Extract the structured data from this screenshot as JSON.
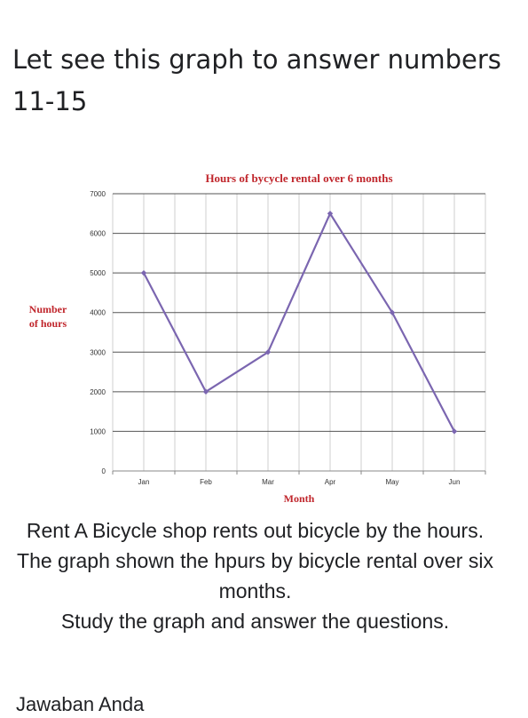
{
  "post": {
    "title": "Let see this graph to answer numbers 11-15",
    "description_lines": [
      "Rent A Bicycle shop rents out bicycle by the hours.",
      "The graph shown the hpurs by bicycle rental over six months.",
      "Study the graph and answer the questions."
    ],
    "cutoff_text": "Jawaban Anda"
  },
  "colors": {
    "line": "#7b66b0",
    "title": "#c0262c",
    "axis_text": "#333333"
  },
  "chart_data": {
    "type": "line",
    "title": "Hours of bycycle rental over 6 months",
    "xlabel": "Month",
    "ylabel": [
      "Number",
      "of hours"
    ],
    "categories": [
      "Jan",
      "Feb",
      "Mar",
      "Apr",
      "May",
      "Jun"
    ],
    "series": [
      {
        "values": [
          5000,
          2000,
          3000,
          6500,
          4000,
          1000
        ]
      }
    ],
    "ylim": [
      0,
      7000
    ],
    "yticks": [
      0,
      1000,
      2000,
      3000,
      4000,
      5000,
      6000,
      7000
    ],
    "grid": true,
    "legend": "none"
  }
}
